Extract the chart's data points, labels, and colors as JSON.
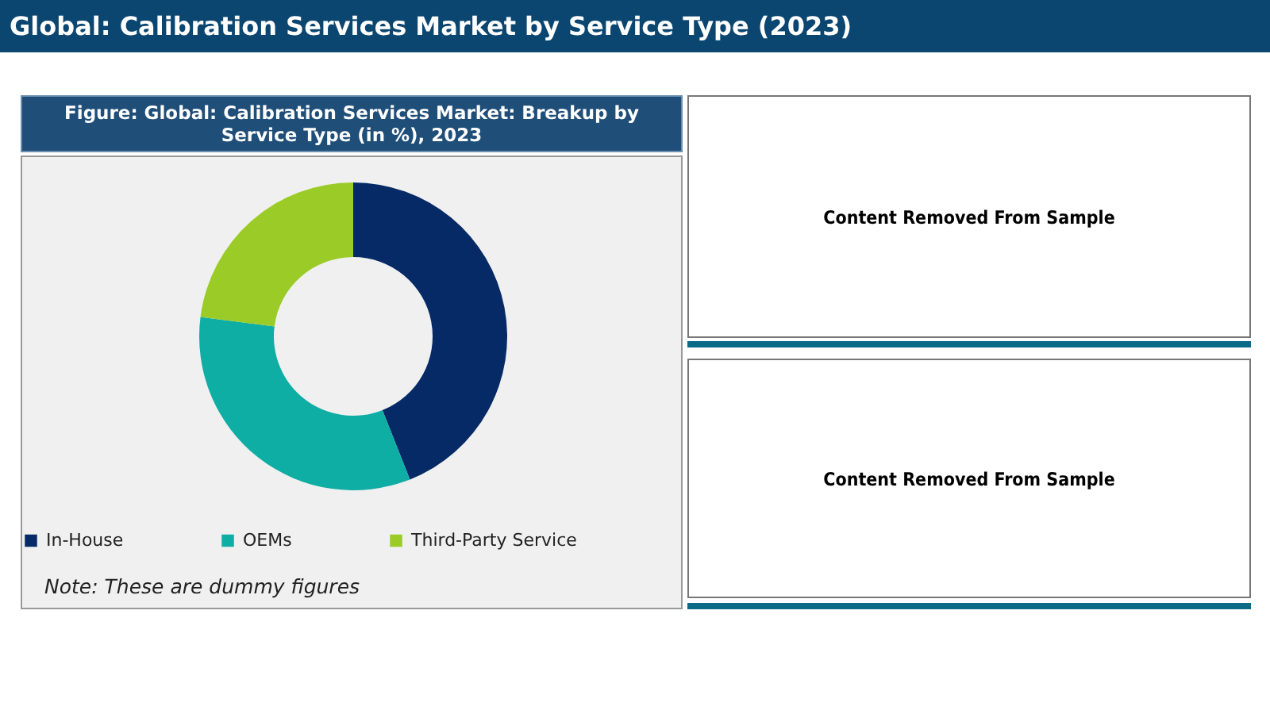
{
  "chart_data": [
    {
      "type": "donut",
      "title": "Global: Calibration Services Market by Service Type (2023)",
      "subtitle": "Figure: Global: Calibration Services Market: Breakup by Service Type (in %), 2023",
      "categories": [
        "In-House",
        "OEMs",
        "Third-Party Service"
      ],
      "values": [
        44,
        33,
        23
      ],
      "colors": [
        "#062a66",
        "#0eaea5",
        "#9bcb26"
      ],
      "legend": "bottom",
      "annotations": [
        "Note: These are dummy figures"
      ]
    },
    {
      "type": "other",
      "annotations": [
        "Content Removed From Sample"
      ]
    },
    {
      "type": "other",
      "annotations": [
        "Content Removed From Sample"
      ]
    }
  ]
}
